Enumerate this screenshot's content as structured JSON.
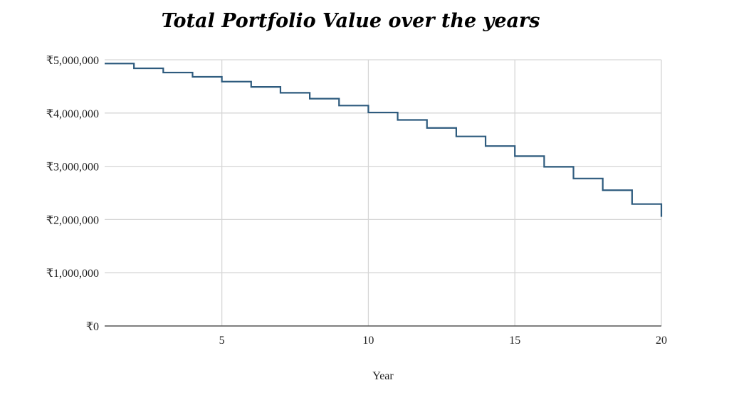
{
  "chart_data": {
    "type": "line",
    "step": true,
    "title": "Total Portfolio Value over the years",
    "xlabel": "Year",
    "ylabel": "",
    "xlim": [
      1,
      20
    ],
    "ylim": [
      0,
      5000000
    ],
    "x_ticks": [
      5,
      10,
      15,
      20
    ],
    "y_ticks": [
      0,
      1000000,
      2000000,
      3000000,
      4000000,
      5000000
    ],
    "y_tick_labels": [
      "₹0",
      "₹1,000,000",
      "₹2,000,000",
      "₹3,000,000",
      "₹4,000,000",
      "₹5,000,000"
    ],
    "grid": true,
    "line_color": "#2e5b7e",
    "series": [
      {
        "x": [
          1,
          2,
          3,
          4,
          5,
          6,
          7,
          8,
          9,
          10,
          11,
          12,
          13,
          14,
          15,
          16,
          17,
          18,
          19,
          20
        ],
        "values": [
          4930000,
          4840000,
          4760000,
          4680000,
          4590000,
          4490000,
          4380000,
          4270000,
          4140000,
          4010000,
          3870000,
          3720000,
          3560000,
          3380000,
          3190000,
          2990000,
          2770000,
          2550000,
          2290000,
          2050000
        ]
      }
    ]
  }
}
